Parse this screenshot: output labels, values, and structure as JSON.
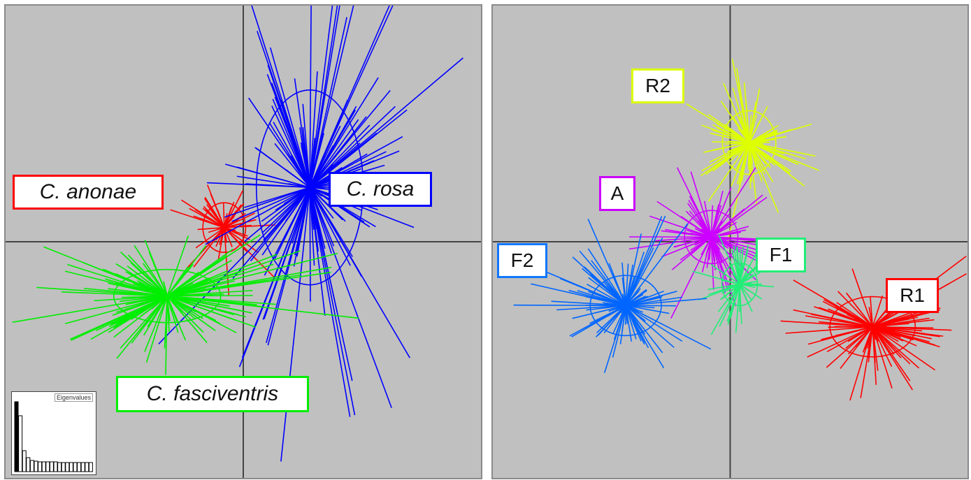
{
  "colors": {
    "background": "#c0c0c0",
    "axis": "#444444",
    "white_panel": "#ffffff"
  },
  "chart_data": [
    {
      "type": "scatter",
      "description_type": "discriminant analysis scatter (star plot with inertia ellipses)",
      "axes": {
        "grid": false,
        "origin_lines": true,
        "xlim": [
          -1,
          1
        ],
        "ylim": [
          -1,
          1
        ]
      },
      "groups": [
        {
          "label": "C. anonae",
          "color": "#ff0000",
          "centroid": [
            -0.08,
            0.06
          ],
          "spread": [
            0.12,
            0.14
          ],
          "count": 60
        },
        {
          "label": "C. rosa",
          "color": "#0000ff",
          "centroid": [
            0.28,
            0.23
          ],
          "spread": [
            0.3,
            0.55
          ],
          "count": 150
        },
        {
          "label": "C. fasciventris",
          "color": "#00ee00",
          "centroid": [
            -0.32,
            -0.23
          ],
          "spread": [
            0.3,
            0.15
          ],
          "count": 150
        }
      ],
      "inset": {
        "title": "Eigenvalues",
        "values": [
          100,
          80,
          30,
          20,
          16,
          15,
          14,
          14,
          14,
          14,
          14,
          13,
          13,
          13,
          13,
          13,
          13,
          13,
          13,
          13
        ]
      }
    },
    {
      "type": "scatter",
      "description_type": "discriminant analysis scatter (star plot with inertia ellipses)",
      "axes": {
        "grid": false,
        "origin_lines": true,
        "xlim": [
          -1,
          1
        ],
        "ylim": [
          -1,
          1
        ]
      },
      "groups": [
        {
          "label": "R2",
          "color": "#ddff00",
          "centroid": [
            0.08,
            0.42
          ],
          "spread": [
            0.15,
            0.18
          ],
          "count": 120
        },
        {
          "label": "A",
          "color": "#cc00ff",
          "centroid": [
            -0.08,
            0.02
          ],
          "spread": [
            0.15,
            0.15
          ],
          "count": 110
        },
        {
          "label": "F1",
          "color": "#22ee77",
          "centroid": [
            0.04,
            -0.18
          ],
          "spread": [
            0.1,
            0.12
          ],
          "count": 70
        },
        {
          "label": "F2",
          "color": "#0066ff",
          "centroid": [
            -0.44,
            -0.27
          ],
          "spread": [
            0.2,
            0.17
          ],
          "count": 110
        },
        {
          "label": "R1",
          "color": "#ff0000",
          "centroid": [
            0.6,
            -0.36
          ],
          "spread": [
            0.24,
            0.17
          ],
          "count": 110
        }
      ]
    }
  ],
  "labels": {
    "left": [
      {
        "text": "C. anonae",
        "color": "#ff0000"
      },
      {
        "text": "C. rosa",
        "color": "#0000ff"
      },
      {
        "text": "C. fasciventris",
        "color": "#00ee00"
      }
    ],
    "right": [
      {
        "text": "R2",
        "color": "#ddff00"
      },
      {
        "text": "A",
        "color": "#cc00ff"
      },
      {
        "text": "F1",
        "color": "#22ee77"
      },
      {
        "text": "F2",
        "color": "#1177ff"
      },
      {
        "text": "R1",
        "color": "#ff0000"
      }
    ]
  }
}
